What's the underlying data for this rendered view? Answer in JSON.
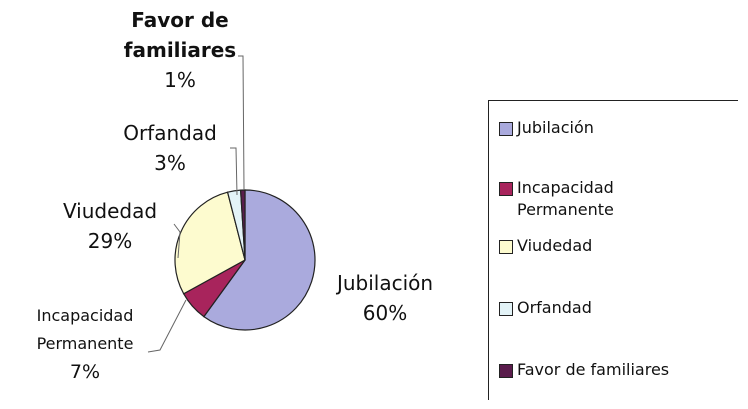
{
  "chart_data": {
    "type": "pie",
    "categories": [
      "Jubilación",
      "Incapacidad Permanente",
      "Viudedad",
      "Orfandad",
      "Favor de familiares"
    ],
    "values": [
      60,
      7,
      29,
      3,
      1
    ],
    "value_labels": [
      "60%",
      "7%",
      "29%",
      "3%",
      "1%"
    ],
    "colors": [
      "#aaaadd",
      "#a8245c",
      "#fdfbcf",
      "#e3f3f7",
      "#5a1c4c"
    ]
  }
}
